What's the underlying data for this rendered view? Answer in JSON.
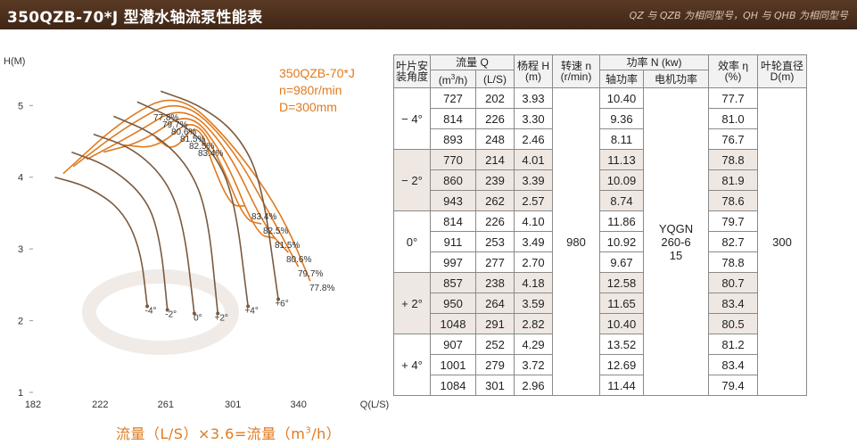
{
  "header": {
    "title": "350QZB-70*J 型潜水轴流泵性能表",
    "subtitle": "QZ 与 QZB 为相同型号，QH 与 QHB 为相同型号"
  },
  "chart_data": {
    "type": "line",
    "title_lines": [
      "350QZB-70*J",
      "n=980r/min",
      "D=300mm"
    ],
    "ylabel": "H(M)",
    "xlabel": "Q(L/S)",
    "x_ticks": [
      182,
      222,
      261,
      301,
      340
    ],
    "y_ticks": [
      1,
      2,
      3,
      4,
      5
    ],
    "xlim": [
      182,
      380
    ],
    "ylim": [
      1,
      5.7
    ],
    "head_curves": [
      {
        "name": "-4°",
        "points": [
          [
            195,
            4.0
          ],
          [
            215,
            3.87
          ],
          [
            235,
            3.55
          ],
          [
            246,
            3.0
          ],
          [
            250,
            2.2
          ]
        ]
      },
      {
        "name": "-2°",
        "points": [
          [
            205,
            4.35
          ],
          [
            228,
            4.15
          ],
          [
            250,
            3.7
          ],
          [
            258,
            3.1
          ],
          [
            262,
            2.15
          ]
        ]
      },
      {
        "name": "0°",
        "points": [
          [
            218,
            4.6
          ],
          [
            242,
            4.4
          ],
          [
            262,
            3.95
          ],
          [
            272,
            3.3
          ],
          [
            278,
            2.1
          ]
        ]
      },
      {
        "name": "+2°",
        "points": [
          [
            230,
            4.85
          ],
          [
            255,
            4.6
          ],
          [
            275,
            4.15
          ],
          [
            286,
            3.5
          ],
          [
            292,
            2.1
          ]
        ]
      },
      {
        "name": "+4°",
        "points": [
          [
            244,
            5.05
          ],
          [
            268,
            4.8
          ],
          [
            290,
            4.35
          ],
          [
            302,
            3.7
          ],
          [
            310,
            2.2
          ]
        ]
      },
      {
        "name": "+6°",
        "points": [
          [
            258,
            5.2
          ],
          [
            282,
            5.0
          ],
          [
            304,
            4.6
          ],
          [
            318,
            3.95
          ],
          [
            328,
            2.3
          ]
        ]
      }
    ],
    "efficiency_contours": [
      {
        "name": "77.8%",
        "points": [
          [
            200,
            4.05
          ],
          [
            235,
            4.8
          ],
          [
            268,
            5.2
          ],
          [
            300,
            4.5
          ],
          [
            330,
            3.5
          ],
          [
            347,
            2.55
          ]
        ]
      },
      {
        "name": "79.7%",
        "points": [
          [
            206,
            4.15
          ],
          [
            238,
            4.72
          ],
          [
            270,
            5.12
          ],
          [
            300,
            4.45
          ],
          [
            325,
            3.4
          ],
          [
            340,
            2.75
          ]
        ]
      },
      {
        "name": "80.6%",
        "points": [
          [
            214,
            4.25
          ],
          [
            242,
            4.6
          ],
          [
            272,
            5.03
          ],
          [
            298,
            4.4
          ],
          [
            320,
            3.3
          ],
          [
            334,
            2.95
          ]
        ]
      },
      {
        "name": "81.5%",
        "points": [
          [
            224,
            4.35
          ],
          [
            248,
            4.5
          ],
          [
            275,
            4.95
          ],
          [
            296,
            4.3
          ],
          [
            315,
            3.2
          ],
          [
            326,
            3.15
          ]
        ]
      },
      {
        "name": "82.5%",
        "points": [
          [
            236,
            4.45
          ],
          [
            256,
            4.4
          ],
          [
            278,
            4.87
          ],
          [
            294,
            4.2
          ],
          [
            308,
            3.4
          ],
          [
            318,
            3.35
          ]
        ]
      },
      {
        "name": "83.4%",
        "points": [
          [
            255,
            4.55
          ],
          [
            266,
            4.35
          ],
          [
            280,
            4.8
          ],
          [
            290,
            4.1
          ],
          [
            300,
            3.6
          ],
          [
            308,
            3.6
          ]
        ]
      }
    ],
    "curve_labels": [
      "-4°",
      "-2°",
      "0°",
      "+2°",
      "+4°",
      "+6°"
    ],
    "contour_labels_top": [
      "77.8%",
      "79.7%",
      "80.6%",
      "81.5%",
      "82.5%",
      "83.4%"
    ],
    "contour_labels_right": [
      "83.4%",
      "82.5%",
      "81.5%",
      "80.6%",
      "79.7%",
      "77.8%"
    ],
    "colors": {
      "head": "#7a5a40",
      "efficiency": "#e07a1e",
      "text": "#333333"
    }
  },
  "formula": {
    "lead": "流量（L/S）×3.6=流量（m",
    "sup": "3",
    "tail": "/h）"
  },
  "table": {
    "headers": {
      "angle": "叶片安装角度",
      "flow": "流量 Q",
      "flow_m3h": "(m",
      "flow_m3h_sup": "3",
      "flow_m3h_tail": "/h)",
      "flow_ls": "(L/S)",
      "head": "杨程 H (m)",
      "speed": "转速 n (r/min)",
      "power": "功率 N (kw)",
      "shaft": "轴功率",
      "motor": "电机功率",
      "eff": "效率 η (%)",
      "dia": "叶轮直径 D(m)"
    },
    "groups": [
      {
        "angle": "− 4°",
        "rows": [
          [
            "727",
            "202",
            "3.93",
            "10.40",
            "77.7"
          ],
          [
            "814",
            "226",
            "3.30",
            "9.36",
            "81.0"
          ],
          [
            "893",
            "248",
            "2.46",
            "8.11",
            "76.7"
          ]
        ]
      },
      {
        "angle": "− 2°",
        "rows": [
          [
            "770",
            "214",
            "4.01",
            "11.13",
            "78.8"
          ],
          [
            "860",
            "239",
            "3.39",
            "10.09",
            "81.9"
          ],
          [
            "943",
            "262",
            "2.57",
            "8.74",
            "78.6"
          ]
        ]
      },
      {
        "angle": "0°",
        "rows": [
          [
            "814",
            "226",
            "4.10",
            "11.86",
            "79.7"
          ],
          [
            "911",
            "253",
            "3.49",
            "10.92",
            "82.7"
          ],
          [
            "997",
            "277",
            "2.70",
            "9.67",
            "78.8"
          ]
        ]
      },
      {
        "angle": "+ 2°",
        "rows": [
          [
            "857",
            "238",
            "4.18",
            "12.58",
            "80.7"
          ],
          [
            "950",
            "264",
            "3.59",
            "11.65",
            "83.4"
          ],
          [
            "1048",
            "291",
            "2.82",
            "10.40",
            "80.5"
          ]
        ]
      },
      {
        "angle": "+ 4°",
        "rows": [
          [
            "907",
            "252",
            "4.29",
            "13.52",
            "81.2"
          ],
          [
            "1001",
            "279",
            "3.72",
            "12.69",
            "83.4"
          ],
          [
            "1084",
            "301",
            "2.96",
            "11.44",
            "79.4"
          ]
        ]
      }
    ],
    "speed": "980",
    "motor": [
      "YQGN",
      "260-6",
      "15"
    ],
    "diameter": "300"
  }
}
